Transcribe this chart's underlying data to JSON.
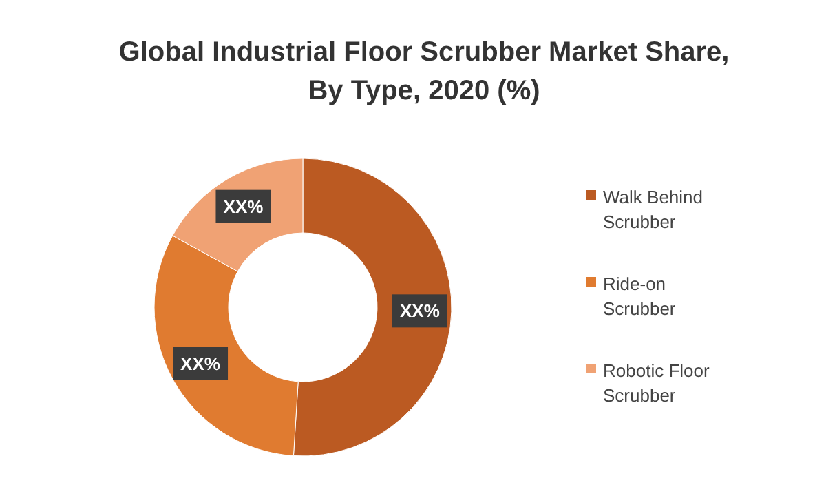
{
  "chart_data": {
    "type": "donut",
    "title": "Global Industrial  Floor Scrubber Market Share, By Type, 2020 (%)",
    "categories": [
      "Walk Behind Scrubber",
      "Ride-on Scrubber",
      "Robotic Floor Scrubber"
    ],
    "values": [
      51,
      32,
      17
    ],
    "colors": [
      "#bb5a22",
      "#e07b30",
      "#f0a274"
    ],
    "value_labels": [
      "XX%",
      "XX%",
      "XX%"
    ],
    "legend": "right"
  }
}
